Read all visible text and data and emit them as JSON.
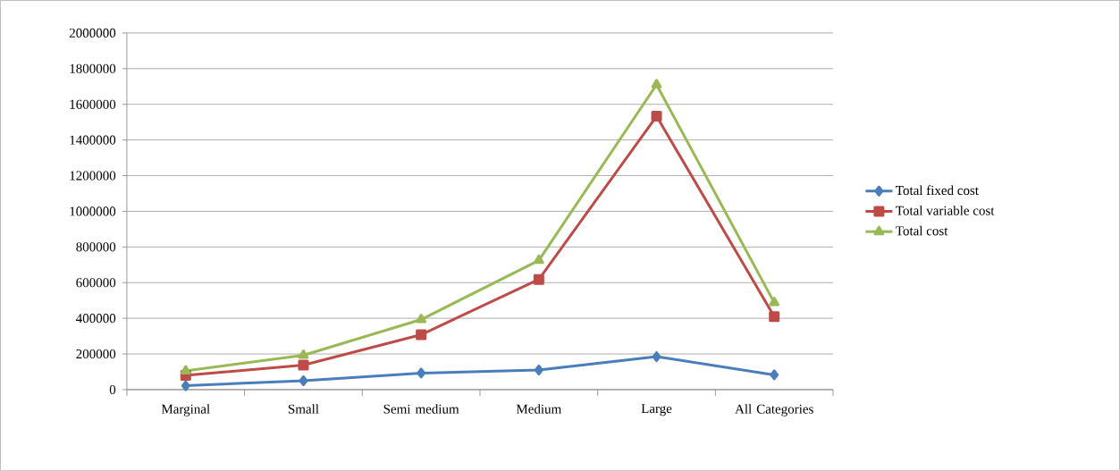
{
  "chart_data": {
    "type": "line",
    "categories": [
      "Marginal",
      "Small",
      "Semi medium",
      "Medium",
      "Large",
      "All Categories"
    ],
    "series": [
      {
        "name": "Total fixed cost",
        "color": "#4a7ebb",
        "marker": "diamond",
        "values": [
          22000,
          50000,
          93000,
          110000,
          185000,
          83000
        ]
      },
      {
        "name": "Total variable cost",
        "color": "#be4b48",
        "marker": "square",
        "values": [
          80000,
          138000,
          308000,
          618000,
          1533000,
          410000
        ]
      },
      {
        "name": "Total cost",
        "color": "#98b954",
        "marker": "triangle",
        "values": [
          105000,
          193000,
          393000,
          725000,
          1710000,
          488000
        ]
      }
    ],
    "ylim": [
      0,
      2000000
    ],
    "yticks": [
      0,
      200000,
      400000,
      600000,
      800000,
      1000000,
      1200000,
      1400000,
      1600000,
      1800000,
      2000000
    ],
    "grid": "y",
    "legend": "right",
    "line_style": "solid"
  }
}
